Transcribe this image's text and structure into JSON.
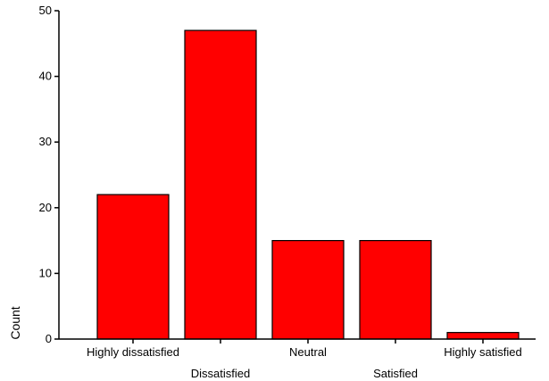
{
  "chart_data": {
    "type": "bar",
    "title": "",
    "xlabel": "",
    "ylabel": "Count",
    "categories": [
      "Highly dissatisfied",
      "Dissatisfied",
      "Neutral",
      "Satisfied",
      "Highly satisfied"
    ],
    "values": [
      22,
      47,
      15,
      15,
      1
    ],
    "ylim": [
      0,
      50
    ],
    "yticks": [
      0,
      10,
      20,
      30,
      40,
      50
    ],
    "grid": false,
    "legend": "none",
    "bar_color": "#ff0000",
    "bar_outline_color": "#000000"
  }
}
